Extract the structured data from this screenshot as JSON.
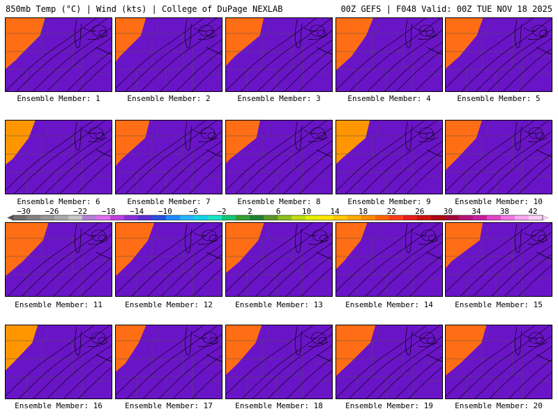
{
  "header": {
    "left": "850mb Temp (°C) | Wind (kts) | College of DuPage NEXLAB",
    "right": "00Z GEFS | F048 Valid: 00Z TUE NOV 18 2025"
  },
  "members": [
    "Ensemble Member: 1",
    "Ensemble Member: 2",
    "Ensemble Member: 3",
    "Ensemble Member: 4",
    "Ensemble Member: 5",
    "Ensemble Member: 6",
    "Ensemble Member: 7",
    "Ensemble Member: 8",
    "Ensemble Member: 9",
    "Ensemble Member: 10",
    "Ensemble Member: 11",
    "Ensemble Member: 12",
    "Ensemble Member: 13",
    "Ensemble Member: 14",
    "Ensemble Member: 15",
    "Ensemble Member: 16",
    "Ensemble Member: 17",
    "Ensemble Member: 18",
    "Ensemble Member: 19",
    "Ensemble Member: 20"
  ],
  "colorbar": {
    "tick_labels": [
      "-30",
      "-26",
      "-22",
      "-18",
      "-14",
      "-10",
      "-6",
      "-2",
      "2",
      "6",
      "10",
      "14",
      "18",
      "22",
      "26",
      "30",
      "34",
      "38",
      "42"
    ],
    "colors": [
      "#6e6e6e",
      "#828282",
      "#969696",
      "#aaaaaa",
      "#c8c8c8",
      "#b480d8",
      "#e070f0",
      "#c040e0",
      "#8c30d8",
      "#5a30d0",
      "#2850e0",
      "#1f8cff",
      "#28b4ff",
      "#14d2e6",
      "#19e6c8",
      "#14c87a",
      "#32a032",
      "#1e8232",
      "#5a9628",
      "#8cbe1e",
      "#bedc14",
      "#e6f000",
      "#ffe600",
      "#ffc800",
      "#ffaa00",
      "#ff8c00",
      "#ff6400",
      "#ff3c1e",
      "#e61e1e",
      "#c81414",
      "#aa0a0a",
      "#a00a3c",
      "#b4147a",
      "#c81ea0",
      "#e046c8",
      "#f078e6",
      "#f8a8f0",
      "#fcd0f8"
    ]
  },
  "field_colors": [
    "#6a14c8",
    "#3c28d2",
    "#1e5ae6",
    "#1ea0f0",
    "#14d2e6",
    "#19e6c8",
    "#14c87a",
    "#28a03c",
    "#1e8232",
    "#6ea028",
    "#a8c81e",
    "#dce614",
    "#f0f000",
    "#ffdc00",
    "#ffbe00",
    "#ff9600",
    "#ff6e14"
  ],
  "member_warm": [
    0.1,
    0.05,
    0.15,
    0.28,
    0.18,
    -0.12,
    0.05,
    0.0,
    -0.05,
    0.12,
    0.3,
    0.22,
    0.1,
    0.08,
    0.05,
    -0.05,
    0.02,
    0.15,
    0.1,
    0.18
  ]
}
